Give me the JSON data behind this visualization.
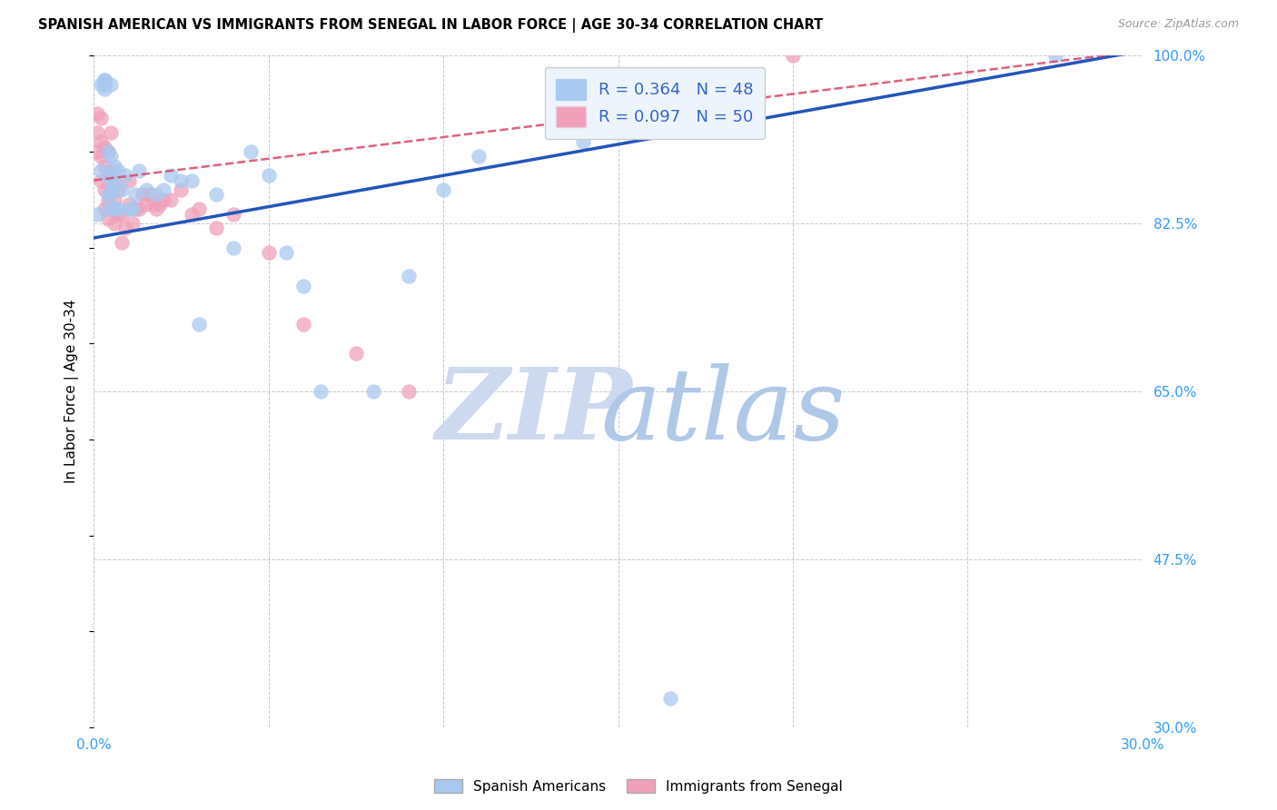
{
  "title": "SPANISH AMERICAN VS IMMIGRANTS FROM SENEGAL IN LABOR FORCE | AGE 30-34 CORRELATION CHART",
  "source": "Source: ZipAtlas.com",
  "ylabel": "In Labor Force | Age 30-34",
  "xlim": [
    0.0,
    0.3
  ],
  "ylim": [
    0.3,
    1.0
  ],
  "xticks": [
    0.0,
    0.05,
    0.1,
    0.15,
    0.2,
    0.25,
    0.3
  ],
  "xtick_labels": [
    "0.0%",
    "",
    "",
    "",
    "",
    "",
    "30.0%"
  ],
  "ytick_labels_right": [
    "100.0%",
    "82.5%",
    "65.0%",
    "47.5%",
    "30.0%"
  ],
  "ytick_vals_right": [
    1.0,
    0.825,
    0.65,
    0.475,
    0.3
  ],
  "grid_color": "#c8c8c8",
  "background_color": "#ffffff",
  "spanish_color": "#a8c8f0",
  "senegal_color": "#f0a0b8",
  "trendline_spanish_color": "#2255bb",
  "trendline_senegal_color": "#dd4466",
  "legend_box_color": "#eef4fc",
  "R_spanish": 0.364,
  "N_spanish": 48,
  "R_senegal": 0.097,
  "N_senegal": 50,
  "watermark_color_zip": "#ccd9ee",
  "watermark_color_atlas": "#b0c8e8",
  "spanish_x": [
    0.001,
    0.002,
    0.002,
    0.003,
    0.003,
    0.003,
    0.003,
    0.004,
    0.004,
    0.004,
    0.004,
    0.005,
    0.005,
    0.005,
    0.005,
    0.006,
    0.006,
    0.006,
    0.007,
    0.007,
    0.008,
    0.009,
    0.01,
    0.011,
    0.012,
    0.013,
    0.015,
    0.018,
    0.02,
    0.022,
    0.025,
    0.028,
    0.03,
    0.035,
    0.04,
    0.045,
    0.05,
    0.055,
    0.06,
    0.065,
    0.08,
    0.09,
    0.1,
    0.11,
    0.14,
    0.155,
    0.165,
    0.275
  ],
  "spanish_y": [
    0.835,
    0.88,
    0.97,
    0.965,
    0.97,
    0.975,
    0.975,
    0.84,
    0.855,
    0.875,
    0.9,
    0.855,
    0.87,
    0.895,
    0.97,
    0.84,
    0.865,
    0.885,
    0.84,
    0.88,
    0.86,
    0.875,
    0.84,
    0.84,
    0.855,
    0.88,
    0.86,
    0.855,
    0.86,
    0.875,
    0.87,
    0.87,
    0.72,
    0.855,
    0.8,
    0.9,
    0.875,
    0.795,
    0.76,
    0.65,
    0.65,
    0.77,
    0.86,
    0.895,
    0.91,
    0.965,
    0.33,
    1.0
  ],
  "senegal_x": [
    0.001,
    0.001,
    0.001,
    0.002,
    0.002,
    0.002,
    0.002,
    0.003,
    0.003,
    0.003,
    0.003,
    0.004,
    0.004,
    0.004,
    0.004,
    0.005,
    0.005,
    0.005,
    0.005,
    0.006,
    0.006,
    0.006,
    0.007,
    0.007,
    0.008,
    0.008,
    0.009,
    0.01,
    0.01,
    0.011,
    0.012,
    0.013,
    0.014,
    0.015,
    0.016,
    0.017,
    0.018,
    0.019,
    0.02,
    0.022,
    0.025,
    0.028,
    0.03,
    0.035,
    0.04,
    0.05,
    0.06,
    0.075,
    0.09,
    0.2
  ],
  "senegal_y": [
    0.9,
    0.92,
    0.94,
    0.87,
    0.895,
    0.91,
    0.935,
    0.84,
    0.86,
    0.885,
    0.905,
    0.83,
    0.85,
    0.875,
    0.9,
    0.84,
    0.86,
    0.88,
    0.92,
    0.825,
    0.85,
    0.87,
    0.835,
    0.86,
    0.805,
    0.835,
    0.82,
    0.845,
    0.87,
    0.825,
    0.84,
    0.84,
    0.855,
    0.845,
    0.855,
    0.845,
    0.84,
    0.845,
    0.85,
    0.85,
    0.86,
    0.835,
    0.84,
    0.82,
    0.835,
    0.795,
    0.72,
    0.69,
    0.65,
    1.0
  ]
}
